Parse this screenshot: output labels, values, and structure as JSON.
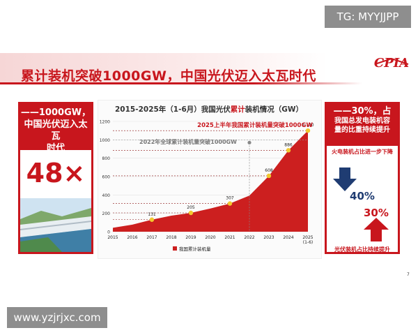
{
  "overlay": {
    "tg_label": "TG: MYYJJPP",
    "website": "www.yzjrjxc.com"
  },
  "header": {
    "title": "累计装机突破1000GW，中国光伏迈入太瓦时代",
    "logo": "CPIA"
  },
  "left_panel": {
    "line1": "——1000GW，",
    "line2": "中国光伏迈入太瓦",
    "line3": "时代",
    "multiplier": "48×"
  },
  "right_panel": {
    "line1": "——30%，占",
    "line2": "我国总发电装机容",
    "line3": "量的比重持续提升",
    "thermal_label": "火电装机占比进一步下降",
    "thermal_pct": "40%",
    "pv_pct": "30%",
    "pv_label": "光伏装机占比持续提升"
  },
  "page_number": "7",
  "colors": {
    "brand_red": "#c8161d",
    "navy": "#1f3c72",
    "marker": "#f2c82f"
  },
  "chart_data": {
    "type": "area",
    "title_prefix": "2015-2025年（1-6月）我国光伏",
    "title_highlight": "累计",
    "title_suffix": "装机情况（GW）",
    "x": [
      "2015",
      "2016",
      "2017",
      "2018",
      "2019",
      "2020",
      "2021",
      "2022",
      "2023",
      "2024",
      "2025"
    ],
    "x_sublabel_last": "(1-6)",
    "series": [
      {
        "name": "我国累计装机量",
        "values": [
          43,
          77,
          131,
          175,
          205,
          253,
          307,
          393,
          608,
          886,
          1100
        ]
      }
    ],
    "data_labels": [
      {
        "index": 2,
        "text": "131"
      },
      {
        "index": 4,
        "text": "205"
      },
      {
        "index": 6,
        "text": "307"
      },
      {
        "index": 8,
        "text": "608"
      },
      {
        "index": 9,
        "text": "886"
      },
      {
        "index": 10,
        "text": "1,100"
      }
    ],
    "y_ticks": [
      0,
      200,
      400,
      600,
      800,
      1000,
      1200
    ],
    "ylim": [
      0,
      1200
    ],
    "annotations": [
      {
        "text": "2025上半年我国累计装机量突破1000GW",
        "color": "#c8161d"
      },
      {
        "text": "2022年全球累计装机量突破1000GW",
        "color": "#777777"
      }
    ],
    "legend": "bottom"
  }
}
